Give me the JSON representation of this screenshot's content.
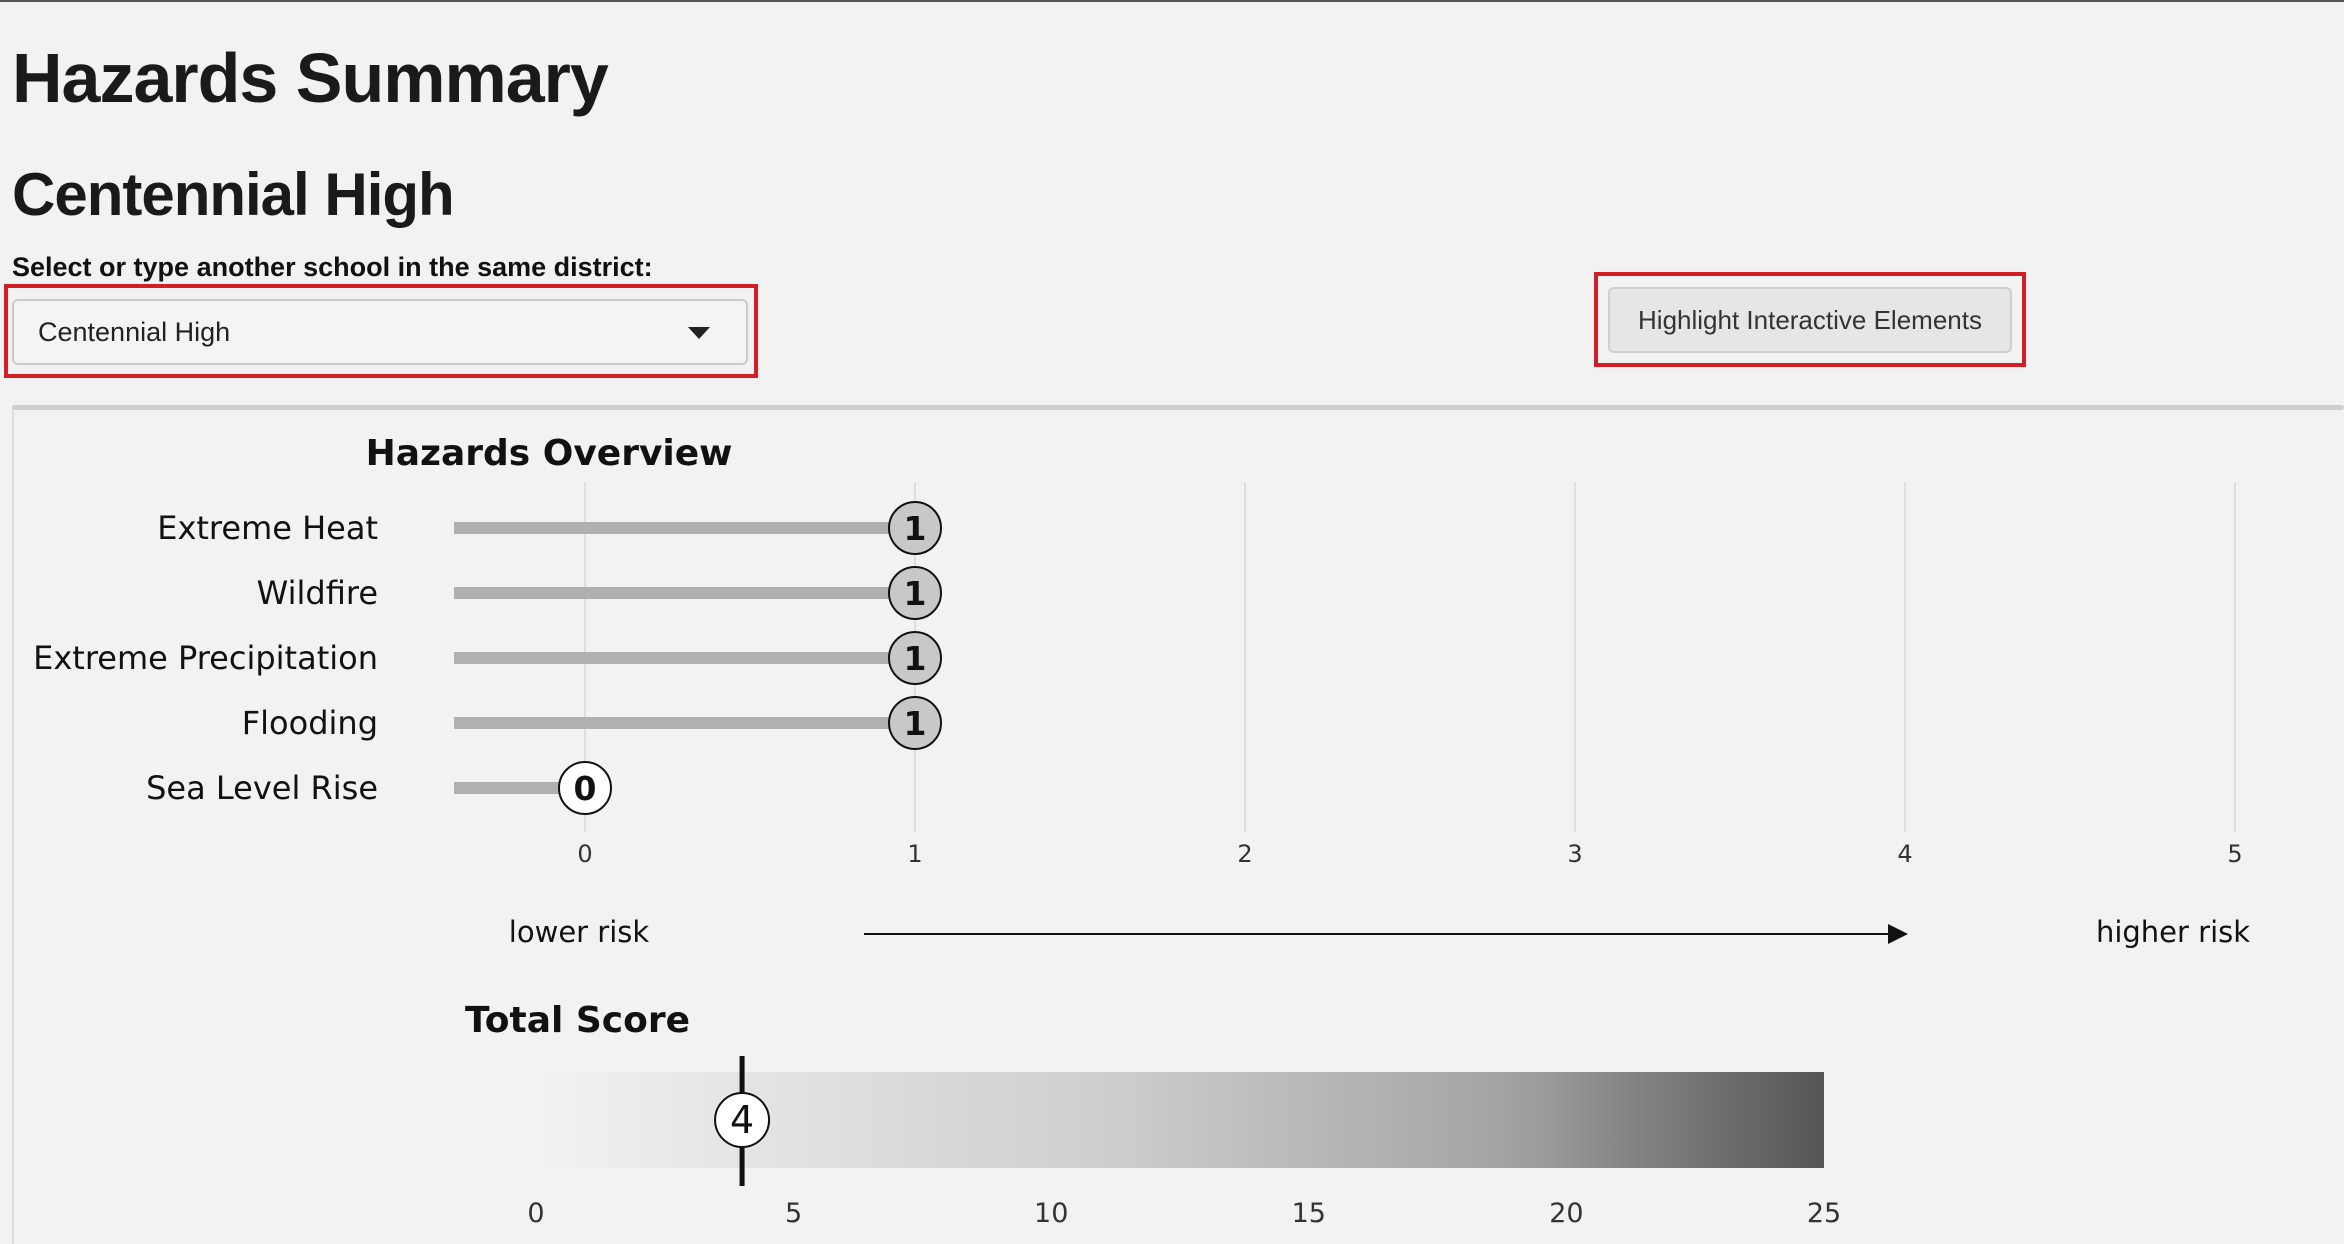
{
  "page": {
    "title": "Hazards Summary",
    "school_name": "Centennial High",
    "select_label": "Select or type another school in the same district:"
  },
  "school_select": {
    "value": "Centennial High"
  },
  "highlight_button": {
    "label": "Highlight Interactive Elements"
  },
  "colors": {
    "highlight_border": "#d21f26",
    "bar": "#b0b0b0",
    "marker_nonzero": "#c8c8c8",
    "marker_zero": "#ffffff",
    "gradient_start": "#f2f2f2",
    "gradient_end": "#555555"
  },
  "chart_data": [
    {
      "type": "bar",
      "title": "Hazards Overview",
      "orientation": "horizontal",
      "categories": [
        "Extreme Heat",
        "Wildfire",
        "Extreme Precipitation",
        "Flooding",
        "Sea Level Rise"
      ],
      "values": [
        1,
        1,
        1,
        1,
        0
      ],
      "xlim": [
        0,
        5
      ],
      "xticks": [
        0,
        1,
        2,
        3,
        4,
        5
      ],
      "grid": true,
      "risk_scale": {
        "low_label": "lower risk",
        "high_label": "higher risk"
      }
    },
    {
      "type": "bar",
      "title": "Total Score",
      "value": 4,
      "xlim": [
        0,
        25
      ],
      "xticks": [
        0,
        5,
        10,
        15,
        20,
        25
      ]
    }
  ]
}
